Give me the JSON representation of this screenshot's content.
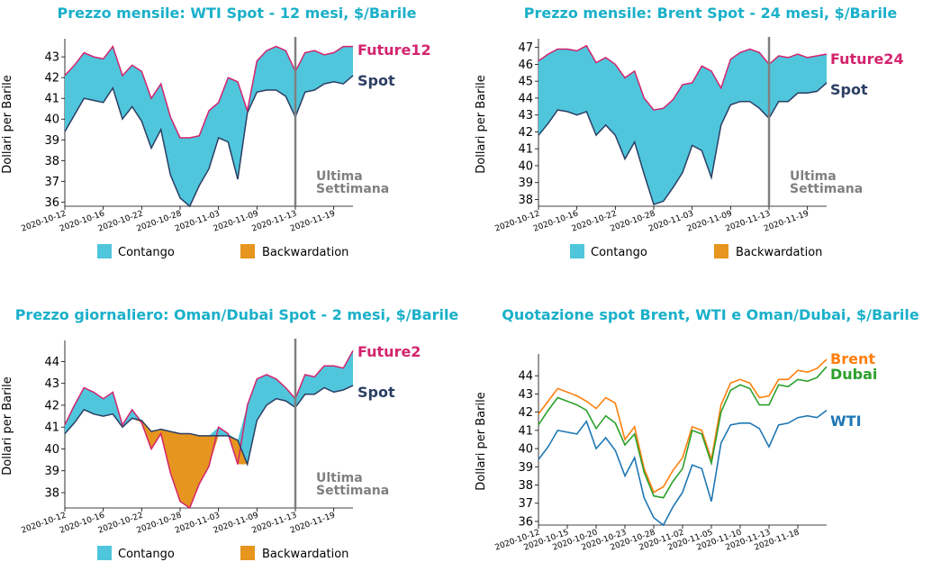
{
  "colors": {
    "title": "#1ab0c9",
    "contango": "#4fc6dc",
    "backwardation": "#e6951e",
    "spot": "#2c3e63",
    "future": "#d4246e",
    "vline": "#808080",
    "brent": "#ff7f0e",
    "dubai": "#2ca02c",
    "wti": "#1f77b4"
  },
  "chart_data": [
    {
      "type": "area",
      "title": "Prezzo mensile: WTI Spot - 12 mesi, $/Barile",
      "ylabel": "Dollari per Barile",
      "x": [
        "2020-10-12",
        "2020-10-13",
        "2020-10-14",
        "2020-10-15",
        "2020-10-16",
        "2020-10-19",
        "2020-10-20",
        "2020-10-21",
        "2020-10-22",
        "2020-10-23",
        "2020-10-26",
        "2020-10-27",
        "2020-10-28",
        "2020-10-29",
        "2020-10-30",
        "2020-11-02",
        "2020-11-03",
        "2020-11-04",
        "2020-11-05",
        "2020-11-06",
        "2020-11-09",
        "2020-11-10",
        "2020-11-11",
        "2020-11-12",
        "2020-11-13",
        "2020-11-16",
        "2020-11-17",
        "2020-11-18",
        "2020-11-19",
        "2020-11-20",
        "2020-11-23"
      ],
      "xticks": [
        "2020-10-12",
        "2020-10-16",
        "2020-10-22",
        "2020-10-28",
        "2020-11-03",
        "2020-11-09",
        "2020-11-13",
        "2020-11-19"
      ],
      "ylim": [
        35.8,
        43.7
      ],
      "yticks": [
        36,
        37,
        38,
        39,
        40,
        41,
        42,
        43
      ],
      "series": [
        {
          "name": "Future12",
          "values": [
            42.1,
            42.6,
            43.2,
            43.0,
            42.9,
            43.5,
            42.1,
            42.6,
            42.3,
            41.0,
            41.7,
            40.1,
            39.1,
            39.1,
            39.2,
            40.4,
            40.8,
            42.0,
            41.8,
            40.4,
            42.8,
            43.3,
            43.5,
            43.3,
            42.3,
            43.2,
            43.3,
            43.1,
            43.2,
            43.5,
            43.5
          ]
        },
        {
          "name": "Spot",
          "values": [
            39.4,
            40.2,
            41.0,
            40.9,
            40.8,
            41.5,
            40.0,
            40.6,
            39.9,
            38.6,
            39.5,
            37.3,
            36.2,
            35.8,
            36.8,
            37.6,
            39.1,
            38.9,
            37.1,
            40.3,
            41.3,
            41.4,
            41.4,
            41.1,
            40.1,
            41.3,
            41.4,
            41.7,
            41.8,
            41.7,
            42.1
          ]
        }
      ],
      "fills": {
        "contango": "Contango",
        "backwardation": "Backwardation"
      },
      "vline": "2020-11-13",
      "annotation": [
        "Ultima",
        "Settimana"
      ]
    },
    {
      "type": "area",
      "title": "Prezzo mensile: Brent Spot - 24 mesi, $/Barile",
      "ylabel": "Dollari per Barile",
      "x": [
        "2020-10-12",
        "2020-10-13",
        "2020-10-14",
        "2020-10-15",
        "2020-10-16",
        "2020-10-19",
        "2020-10-20",
        "2020-10-21",
        "2020-10-22",
        "2020-10-23",
        "2020-10-26",
        "2020-10-27",
        "2020-10-28",
        "2020-10-29",
        "2020-10-30",
        "2020-11-02",
        "2020-11-03",
        "2020-11-04",
        "2020-11-05",
        "2020-11-06",
        "2020-11-09",
        "2020-11-10",
        "2020-11-11",
        "2020-11-12",
        "2020-11-13",
        "2020-11-16",
        "2020-11-17",
        "2020-11-18",
        "2020-11-19",
        "2020-11-20",
        "2020-11-23"
      ],
      "xticks": [
        "2020-10-12",
        "2020-10-16",
        "2020-10-22",
        "2020-10-28",
        "2020-11-03",
        "2020-11-09",
        "2020-11-13",
        "2020-11-19"
      ],
      "ylim": [
        37.6,
        47.3
      ],
      "yticks": [
        38,
        39,
        40,
        41,
        42,
        43,
        44,
        45,
        46,
        47
      ],
      "series": [
        {
          "name": "Future24",
          "values": [
            46.2,
            46.6,
            46.9,
            46.9,
            46.8,
            47.1,
            46.1,
            46.4,
            46.0,
            45.2,
            45.6,
            44.0,
            43.3,
            43.4,
            43.9,
            44.8,
            44.9,
            45.9,
            45.6,
            44.6,
            46.3,
            46.7,
            46.9,
            46.7,
            46.0,
            46.5,
            46.4,
            46.6,
            46.4,
            46.5,
            46.6
          ]
        },
        {
          "name": "Spot",
          "values": [
            41.8,
            42.5,
            43.3,
            43.2,
            43.0,
            43.2,
            41.8,
            42.4,
            41.8,
            40.4,
            41.4,
            39.5,
            37.7,
            37.9,
            38.7,
            39.6,
            41.2,
            40.9,
            39.3,
            42.4,
            43.6,
            43.8,
            43.8,
            43.4,
            42.8,
            43.8,
            43.8,
            44.3,
            44.3,
            44.4,
            44.9
          ]
        }
      ],
      "fills": {
        "contango": "Contango",
        "backwardation": "Backwardation"
      },
      "vline": "2020-11-13",
      "annotation": [
        "Ultima",
        "Settimana"
      ]
    },
    {
      "type": "area",
      "title": "Prezzo giornaliero: Oman/Dubai Spot - 2 mesi, $/Barile",
      "ylabel": "Dollari per Barile",
      "x": [
        "2020-10-12",
        "2020-10-13",
        "2020-10-14",
        "2020-10-15",
        "2020-10-16",
        "2020-10-19",
        "2020-10-20",
        "2020-10-21",
        "2020-10-22",
        "2020-10-23",
        "2020-10-26",
        "2020-10-27",
        "2020-10-28",
        "2020-10-29",
        "2020-10-30",
        "2020-11-02",
        "2020-11-03",
        "2020-11-04",
        "2020-11-05",
        "2020-11-06",
        "2020-11-09",
        "2020-11-10",
        "2020-11-11",
        "2020-11-12",
        "2020-11-13",
        "2020-11-16",
        "2020-11-17",
        "2020-11-18",
        "2020-11-19",
        "2020-11-20",
        "2020-11-23"
      ],
      "xticks": [
        "2020-10-12",
        "2020-10-16",
        "2020-10-22",
        "2020-10-28",
        "2020-11-03",
        "2020-11-09",
        "2020-11-13",
        "2020-11-19"
      ],
      "ylim": [
        37.3,
        44.8
      ],
      "yticks": [
        38,
        39,
        40,
        41,
        42,
        43,
        44
      ],
      "series": [
        {
          "name": "Future2",
          "values": [
            41.1,
            42.0,
            42.8,
            42.6,
            42.3,
            42.6,
            41.1,
            41.8,
            41.2,
            40.0,
            40.7,
            38.9,
            37.6,
            37.3,
            38.4,
            39.2,
            41.0,
            40.7,
            39.3,
            42.0,
            43.2,
            43.4,
            43.2,
            42.8,
            42.3,
            43.4,
            43.3,
            43.8,
            43.8,
            43.7,
            44.5
          ]
        },
        {
          "name": "Spot",
          "values": [
            40.7,
            41.2,
            41.8,
            41.6,
            41.5,
            41.6,
            41.0,
            41.4,
            41.3,
            40.8,
            40.9,
            40.8,
            40.7,
            40.7,
            40.6,
            40.6,
            40.6,
            40.6,
            40.4,
            39.3,
            41.3,
            42.0,
            42.3,
            42.2,
            41.9,
            42.5,
            42.5,
            42.8,
            42.6,
            42.7,
            42.9
          ]
        }
      ],
      "fills": {
        "contango": "Contango",
        "backwardation": "Backwardation"
      },
      "vline": "2020-11-13",
      "annotation": [
        "Ultima",
        "Settimana"
      ]
    },
    {
      "type": "line",
      "title": "Quotazione spot Brent, WTI e Oman/Dubai, $/Barile",
      "ylabel": "Dollari per Barile",
      "x": [
        "2020-10-12",
        "2020-10-13",
        "2020-10-14",
        "2020-10-15",
        "2020-10-16",
        "2020-10-19",
        "2020-10-20",
        "2020-10-21",
        "2020-10-22",
        "2020-10-23",
        "2020-10-26",
        "2020-10-27",
        "2020-10-28",
        "2020-10-29",
        "2020-10-30",
        "2020-11-02",
        "2020-11-03",
        "2020-11-04",
        "2020-11-05",
        "2020-11-06",
        "2020-11-09",
        "2020-11-10",
        "2020-11-11",
        "2020-11-12",
        "2020-11-13",
        "2020-11-16",
        "2020-11-17",
        "2020-11-18",
        "2020-11-19",
        "2020-11-20",
        "2020-11-23"
      ],
      "xticks": [
        "2020-10-12",
        "2020-10-15",
        "2020-10-20",
        "2020-10-23",
        "2020-10-28",
        "2020-11-02",
        "2020-11-05",
        "2020-11-10",
        "2020-11-13",
        "2020-11-18"
      ],
      "ylim": [
        35.8,
        45.0
      ],
      "yticks": [
        36,
        37,
        38,
        39,
        40,
        41,
        42,
        43,
        44
      ],
      "series": [
        {
          "name": "Brent",
          "values": [
            41.9,
            42.6,
            43.3,
            43.1,
            42.9,
            42.6,
            42.2,
            42.8,
            42.5,
            40.5,
            41.2,
            38.9,
            37.6,
            37.9,
            38.8,
            39.5,
            41.2,
            41.0,
            39.4,
            42.4,
            43.6,
            43.8,
            43.6,
            42.8,
            42.9,
            43.8,
            43.8,
            44.3,
            44.2,
            44.4,
            44.9
          ]
        },
        {
          "name": "Dubai",
          "values": [
            41.3,
            42.1,
            42.8,
            42.6,
            42.4,
            42.1,
            41.1,
            41.8,
            41.4,
            40.2,
            40.8,
            38.7,
            37.4,
            37.3,
            38.2,
            38.9,
            41.0,
            40.8,
            39.2,
            42.0,
            43.2,
            43.5,
            43.3,
            42.4,
            42.4,
            43.5,
            43.4,
            43.8,
            43.7,
            43.9,
            44.5
          ]
        },
        {
          "name": "WTI",
          "values": [
            39.4,
            40.1,
            41.0,
            40.9,
            40.8,
            41.5,
            40.0,
            40.6,
            39.9,
            38.5,
            39.5,
            37.3,
            36.2,
            35.8,
            36.8,
            37.6,
            39.1,
            38.9,
            37.1,
            40.3,
            41.3,
            41.4,
            41.4,
            41.1,
            40.1,
            41.3,
            41.4,
            41.7,
            41.8,
            41.7,
            42.1
          ]
        }
      ]
    }
  ]
}
